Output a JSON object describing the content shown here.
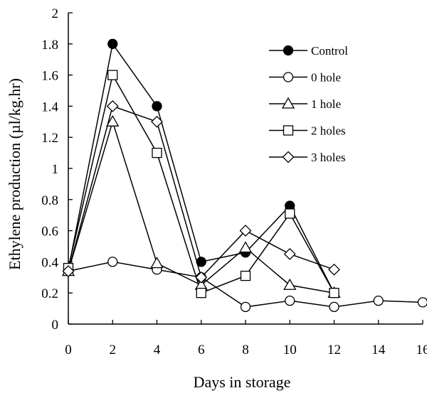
{
  "chart_data": {
    "type": "line",
    "title": "",
    "xlabel": "Days in storage",
    "ylabel": "Ethylene production (µl/kg.hr)",
    "xlim": [
      0,
      16
    ],
    "ylim": [
      0,
      2
    ],
    "x_ticks": [
      "0",
      "2",
      "4",
      "6",
      "8",
      "10",
      "12",
      "14",
      "16"
    ],
    "y_ticks": [
      "0",
      "0.2",
      "0.4",
      "0.6",
      "0.8",
      "1",
      "1.2",
      "1.4",
      "1.6",
      "1.8",
      "2"
    ],
    "grid": false,
    "legend_position": "top-right",
    "series": [
      {
        "name": "Control",
        "marker": "filled-circle",
        "x": [
          0,
          2,
          4,
          6,
          8,
          10,
          12
        ],
        "y": [
          0.35,
          1.8,
          1.4,
          0.4,
          0.46,
          0.76,
          0.2
        ]
      },
      {
        "name": "0 hole",
        "marker": "open-circle",
        "x": [
          0,
          2,
          4,
          6,
          8,
          10,
          12,
          14,
          16
        ],
        "y": [
          0.34,
          0.4,
          0.35,
          0.3,
          0.11,
          0.15,
          0.11,
          0.15,
          0.14
        ]
      },
      {
        "name": "1 hole",
        "marker": "open-triangle",
        "x": [
          0,
          2,
          4,
          6,
          8,
          10,
          12
        ],
        "y": [
          0.34,
          1.3,
          0.39,
          0.25,
          0.49,
          0.25,
          0.2
        ]
      },
      {
        "name": "2 holes",
        "marker": "open-square",
        "x": [
          0,
          2,
          4,
          6,
          8,
          10,
          12
        ],
        "y": [
          0.36,
          1.6,
          1.1,
          0.2,
          0.31,
          0.71,
          0.2
        ]
      },
      {
        "name": "3 holes",
        "marker": "open-diamond",
        "x": [
          0,
          2,
          4,
          6,
          8,
          10,
          12
        ],
        "y": [
          0.34,
          1.4,
          1.3,
          0.3,
          0.6,
          0.45,
          0.35
        ]
      }
    ]
  }
}
